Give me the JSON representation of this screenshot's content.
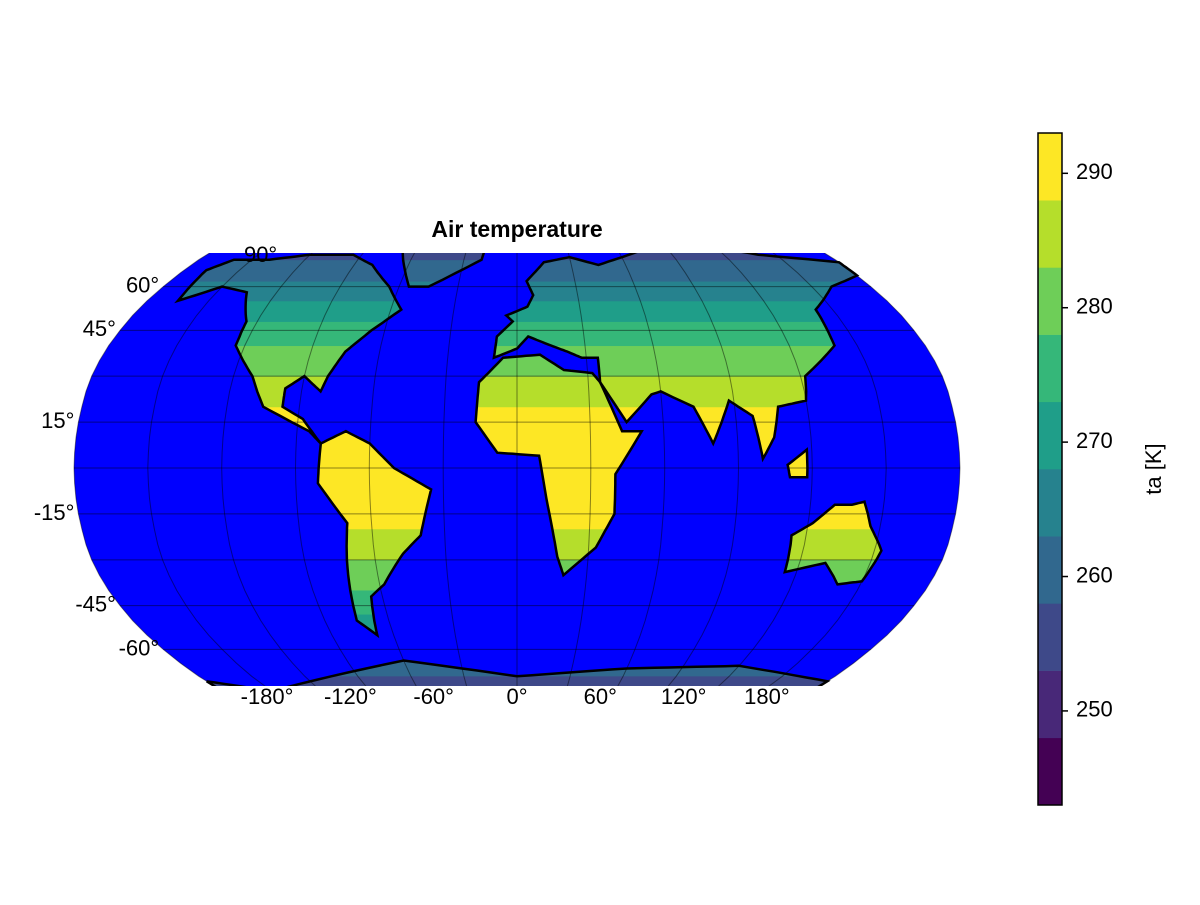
{
  "title": "Air temperature",
  "map": {
    "lat_labels": [
      {
        "value": 90,
        "label": "90°"
      },
      {
        "value": 60,
        "label": "60°"
      },
      {
        "value": 45,
        "label": "45°"
      },
      {
        "value": 15,
        "label": "15°"
      },
      {
        "value": -15,
        "label": "-15°"
      },
      {
        "value": -45,
        "label": "-45°"
      },
      {
        "value": -60,
        "label": "-60°"
      }
    ],
    "lon_labels": [
      {
        "value": -180,
        "label": "-180°"
      },
      {
        "value": -120,
        "label": "-120°"
      },
      {
        "value": -60,
        "label": "-60°"
      },
      {
        "value": 0,
        "label": "0°"
      },
      {
        "value": 60,
        "label": "60°"
      },
      {
        "value": 120,
        "label": "120°"
      },
      {
        "value": 180,
        "label": "180°"
      }
    ],
    "ocean_color": "#0000ff"
  },
  "colorbar": {
    "label": "ta [K]",
    "lim": [
      243,
      293
    ],
    "ticks": [
      250,
      260,
      270,
      280,
      290
    ],
    "levels": [
      243,
      248,
      253,
      258,
      263,
      268,
      273,
      278,
      283,
      288,
      293
    ],
    "colors": [
      "#440154",
      "#482878",
      "#3e4989",
      "#31688e",
      "#26828e",
      "#1f9e89",
      "#35b779",
      "#6ece58",
      "#b5de2b",
      "#fde725"
    ]
  }
}
